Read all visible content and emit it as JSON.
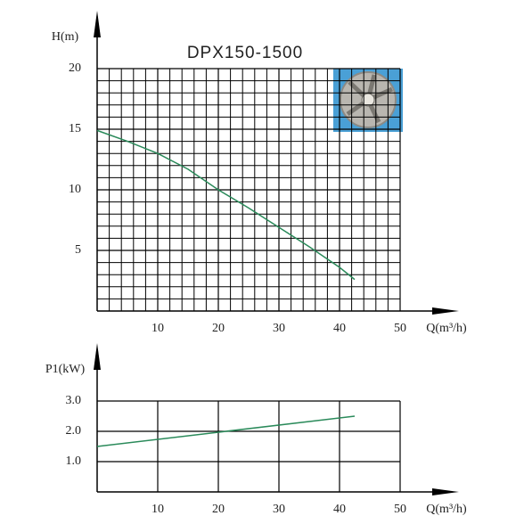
{
  "chart_data": [
    {
      "type": "line",
      "title": "DPX150-1500",
      "ylabel": "H(m)",
      "xlabel": "Q(m³/h)",
      "x": [
        0,
        5,
        10,
        15,
        20,
        25,
        30,
        35,
        40,
        42.5
      ],
      "values": [
        14.9,
        14.0,
        13.0,
        11.7,
        10.0,
        8.5,
        6.9,
        5.3,
        3.6,
        2.6
      ],
      "color": "#2a8a5a",
      "xlim": [
        0,
        50
      ],
      "xticks": [
        10,
        20,
        30,
        40,
        50
      ],
      "ylim": [
        0,
        20
      ],
      "yticks": [
        5,
        10,
        15,
        20
      ],
      "grid": true,
      "minor_grid": {
        "x": 2,
        "y": 1
      }
    },
    {
      "type": "line",
      "ylabel": "P1(kW)",
      "xlabel": "Q(m³/h)",
      "x": [
        0,
        42.5
      ],
      "values": [
        1.5,
        2.5
      ],
      "color": "#2a8a5a",
      "xlim": [
        0,
        50
      ],
      "xticks": [
        10,
        20,
        30,
        40,
        50
      ],
      "ylim": [
        0,
        3
      ],
      "yticks": [
        {
          "value": 1,
          "label": "1.0"
        },
        {
          "value": 2,
          "label": "2.0"
        },
        {
          "value": 3,
          "label": "3.0"
        }
      ],
      "grid": true
    }
  ]
}
